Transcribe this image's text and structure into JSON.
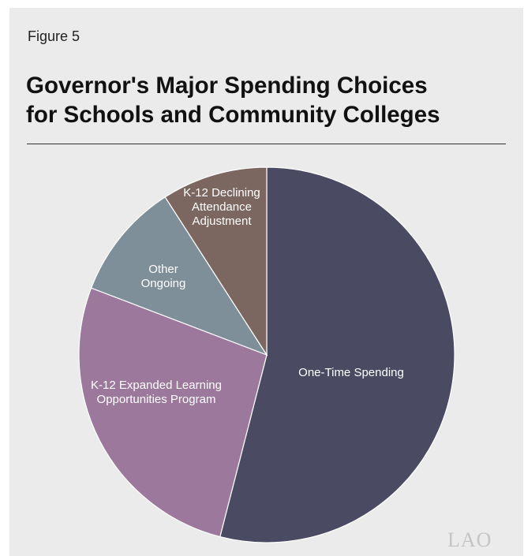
{
  "figure_label": "Figure 5",
  "title_line1": "Governor's Major Spending Choices",
  "title_line2": "for Schools and Community Colleges",
  "logo": "LAO",
  "colors": {
    "one_time": "#4a4b62",
    "expanded_learning": "#9b789c",
    "other_ongoing": "#7e8f99",
    "declining_attendance": "#7b6760"
  },
  "chart_data": {
    "type": "pie",
    "slices": [
      {
        "label": "One-Time Spending",
        "label_lines": [
          "One-Time Spending"
        ],
        "percent": 54.0,
        "color": "#4a4b62"
      },
      {
        "label": "K-12 Expanded Learning Opportunities Program",
        "label_lines": [
          "K-12 Expanded Learning",
          "Opportunities Program"
        ],
        "percent": 26.8,
        "color": "#9b789c"
      },
      {
        "label": "Other Ongoing",
        "label_lines": [
          "Other",
          "Ongoing"
        ],
        "percent": 10.1,
        "color": "#7e8f99"
      },
      {
        "label": "K-12 Declining Attendance Adjustment",
        "label_lines": [
          "K-12 Declining",
          "Attendance",
          "Adjustment"
        ],
        "percent": 9.1,
        "color": "#7b6760"
      }
    ],
    "start": "12 o'clock",
    "direction": "clockwise"
  }
}
